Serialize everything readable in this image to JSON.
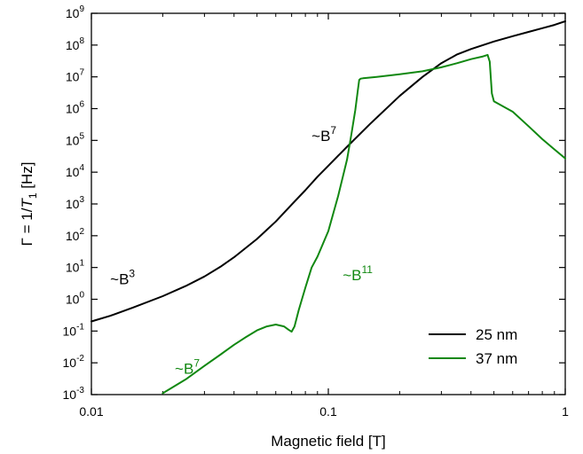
{
  "chart_data": {
    "type": "line",
    "xlabel": "Magnetic field [T]",
    "ylabel_parts": {
      "pre": "Γ = 1/",
      "var": "T",
      "sub": "1",
      "post": " [Hz]"
    },
    "x_scale": "log",
    "y_scale": "log",
    "xlim": [
      0.01,
      1
    ],
    "ylim": [
      0.001,
      1000000000
    ],
    "x_ticks": [
      {
        "value": 0.01,
        "label": "0.01"
      },
      {
        "value": 0.1,
        "label": "0.1"
      },
      {
        "value": 1,
        "label": "1"
      }
    ],
    "y_ticks": [
      {
        "value": 0.001,
        "base": "10",
        "exp": "-3"
      },
      {
        "value": 0.01,
        "base": "10",
        "exp": "-2"
      },
      {
        "value": 0.1,
        "base": "10",
        "exp": "-1"
      },
      {
        "value": 1,
        "base": "10",
        "exp": "0"
      },
      {
        "value": 10,
        "base": "10",
        "exp": "1"
      },
      {
        "value": 100,
        "base": "10",
        "exp": "2"
      },
      {
        "value": 1000,
        "base": "10",
        "exp": "3"
      },
      {
        "value": 10000,
        "base": "10",
        "exp": "4"
      },
      {
        "value": 100000,
        "base": "10",
        "exp": "5"
      },
      {
        "value": 1000000,
        "base": "10",
        "exp": "6"
      },
      {
        "value": 10000000,
        "base": "10",
        "exp": "7"
      },
      {
        "value": 100000000,
        "base": "10",
        "exp": "8"
      },
      {
        "value": 1000000000,
        "base": "10",
        "exp": "9"
      }
    ],
    "grid": false,
    "legend_position": "bottom-right",
    "series": [
      {
        "name": "25 nm",
        "color": "#000000",
        "x": [
          0.01,
          0.012,
          0.015,
          0.02,
          0.025,
          0.03,
          0.035,
          0.04,
          0.05,
          0.06,
          0.07,
          0.08,
          0.09,
          0.1,
          0.12,
          0.15,
          0.2,
          0.25,
          0.3,
          0.35,
          0.4,
          0.5,
          0.6,
          0.7,
          0.8,
          0.9,
          1.0
        ],
        "y": [
          0.2,
          0.3,
          0.55,
          1.25,
          2.6,
          5.2,
          10.5,
          21,
          79,
          280,
          950,
          2700,
          7200,
          16000,
          63000,
          330000,
          2500000,
          10000000,
          27000000,
          51000000,
          75000000,
          130000000,
          190000000,
          260000000,
          340000000,
          430000000,
          560000000
        ]
      },
      {
        "name": "37 nm",
        "color": "#118811",
        "x": [
          0.02,
          0.025,
          0.03,
          0.035,
          0.04,
          0.045,
          0.05,
          0.055,
          0.06,
          0.065,
          0.068,
          0.07,
          0.072,
          0.075,
          0.08,
          0.085,
          0.09,
          0.1,
          0.11,
          0.12,
          0.125,
          0.13,
          0.133,
          0.135,
          0.137,
          0.14,
          0.16,
          0.2,
          0.25,
          0.3,
          0.35,
          0.4,
          0.45,
          0.47,
          0.48,
          0.49,
          0.5,
          0.6,
          0.7,
          0.8,
          0.9,
          1.0
        ],
        "y": [
          0.0011,
          0.003,
          0.008,
          0.018,
          0.037,
          0.065,
          0.105,
          0.14,
          0.16,
          0.14,
          0.11,
          0.095,
          0.14,
          0.45,
          2.3,
          10,
          22,
          140,
          1800,
          25000,
          150000,
          900000,
          3500000,
          8000000,
          8800000,
          9000000,
          10000000,
          12000000,
          15000000,
          20000000,
          27000000,
          36000000,
          44000000,
          49000000,
          30000000,
          3000000,
          1700000,
          800000,
          280000,
          110000,
          52000,
          27000
        ]
      }
    ],
    "annotations": [
      {
        "base": "~B",
        "exp": "3",
        "color": "#000000",
        "x": 0.012,
        "y": 3.0
      },
      {
        "base": "~B",
        "exp": "7",
        "color": "#000000",
        "x": 0.085,
        "y": 95000
      },
      {
        "base": "~B",
        "exp": "11",
        "color": "#118811",
        "x": 0.115,
        "y": 4.0
      },
      {
        "base": "~B",
        "exp": "7",
        "color": "#118811",
        "x": 0.0225,
        "y": 0.0045
      }
    ]
  }
}
